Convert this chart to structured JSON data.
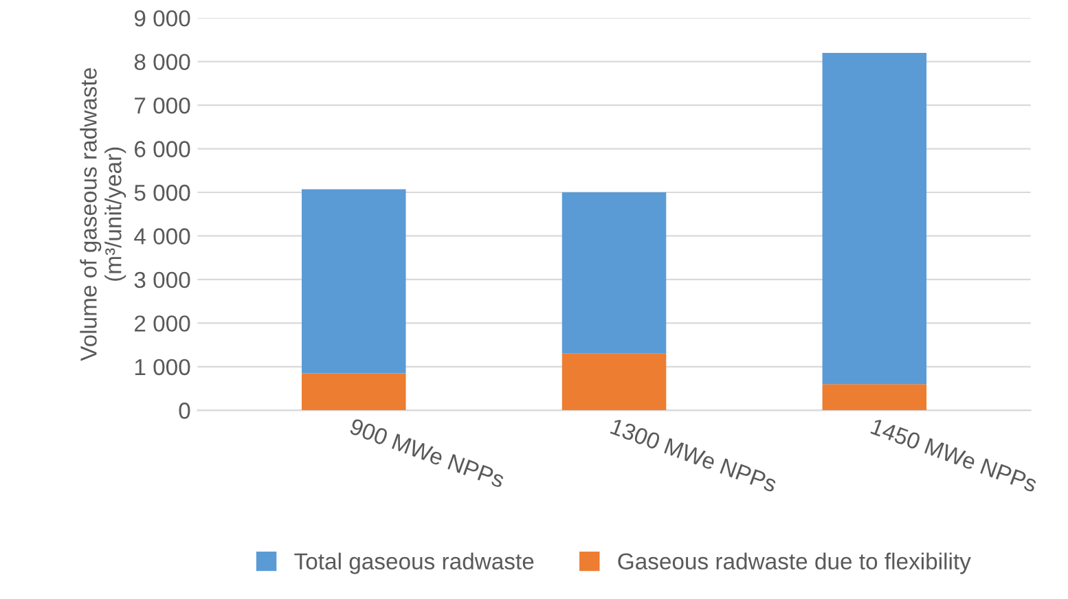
{
  "chart_data": {
    "type": "bar",
    "stacked": true,
    "ylabel": "Volume of gaseous radwaste\n(m³/unit/year)",
    "categories": [
      "900 MWe NPPs",
      "1300 MWe NPPs",
      "1450 MWe NPPs"
    ],
    "series": [
      {
        "name": "Gaseous radwaste due to flexibility",
        "color": "#ed7d31",
        "values": [
          850,
          1300,
          600
        ]
      },
      {
        "name": "Total gaseous radwaste",
        "color": "#5b9bd5",
        "values": [
          4220,
          3700,
          7600
        ]
      }
    ],
    "ylim": [
      0,
      9000
    ],
    "yticks": [
      0,
      {
        "value": 1000,
        "label": "1 000"
      },
      {
        "value": 2000,
        "label": "2 000"
      },
      {
        "value": 3000,
        "label": "3 000"
      },
      {
        "value": 4000,
        "label": "4 000"
      },
      {
        "value": 5000,
        "label": "5 000"
      },
      {
        "value": 6000,
        "label": "6 000"
      },
      {
        "value": 7000,
        "label": "7 000"
      },
      {
        "value": 8000,
        "label": "8 000"
      },
      {
        "value": 9000,
        "label": "9 000"
      }
    ],
    "grid": "y",
    "legend": "bottom"
  }
}
